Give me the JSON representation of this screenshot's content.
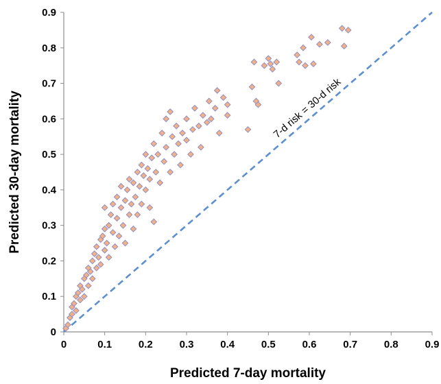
{
  "chart_data": {
    "type": "scatter",
    "title": "",
    "xlabel": "Predicted 7-day mortality",
    "ylabel": "Predicted 30-day mortality",
    "xlim": [
      0,
      0.9
    ],
    "ylim": [
      0,
      0.9
    ],
    "x_ticks": [
      "0",
      "0.1",
      "0.2",
      "0.3",
      "0.4",
      "0.5",
      "0.6",
      "0.7",
      "0.8",
      "0.9"
    ],
    "y_ticks": [
      "0",
      "0.1",
      "0.2",
      "0.3",
      "0.4",
      "0.5",
      "0.6",
      "0.7",
      "0.8",
      "0.9"
    ],
    "grid": false,
    "legend": "none",
    "marker": {
      "shape": "diamond",
      "fill": "#F4B183",
      "edge": "#8E8EC9"
    },
    "reference_line": {
      "label": "7-d risk = 30-d risk",
      "from": [
        0,
        0
      ],
      "to": [
        0.9,
        0.9
      ],
      "style": "dashed",
      "color": "#5B8FCF"
    },
    "points": [
      [
        0.005,
        0.01
      ],
      [
        0.01,
        0.02
      ],
      [
        0.015,
        0.04
      ],
      [
        0.02,
        0.05
      ],
      [
        0.02,
        0.07
      ],
      [
        0.025,
        0.08
      ],
      [
        0.03,
        0.06
      ],
      [
        0.03,
        0.1
      ],
      [
        0.035,
        0.11
      ],
      [
        0.04,
        0.09
      ],
      [
        0.04,
        0.13
      ],
      [
        0.045,
        0.12
      ],
      [
        0.05,
        0.15
      ],
      [
        0.05,
        0.1
      ],
      [
        0.055,
        0.16
      ],
      [
        0.06,
        0.13
      ],
      [
        0.06,
        0.18
      ],
      [
        0.065,
        0.17
      ],
      [
        0.07,
        0.2
      ],
      [
        0.07,
        0.15
      ],
      [
        0.075,
        0.22
      ],
      [
        0.08,
        0.18
      ],
      [
        0.08,
        0.24
      ],
      [
        0.085,
        0.21
      ],
      [
        0.09,
        0.26
      ],
      [
        0.09,
        0.19
      ],
      [
        0.095,
        0.27
      ],
      [
        0.1,
        0.23
      ],
      [
        0.1,
        0.29
      ],
      [
        0.1,
        0.35
      ],
      [
        0.105,
        0.25
      ],
      [
        0.11,
        0.3
      ],
      [
        0.11,
        0.21
      ],
      [
        0.115,
        0.33
      ],
      [
        0.12,
        0.28
      ],
      [
        0.12,
        0.36
      ],
      [
        0.125,
        0.24
      ],
      [
        0.13,
        0.32
      ],
      [
        0.13,
        0.38
      ],
      [
        0.135,
        0.27
      ],
      [
        0.14,
        0.35
      ],
      [
        0.14,
        0.41
      ],
      [
        0.145,
        0.3
      ],
      [
        0.15,
        0.37
      ],
      [
        0.15,
        0.25
      ],
      [
        0.155,
        0.4
      ],
      [
        0.16,
        0.33
      ],
      [
        0.16,
        0.43
      ],
      [
        0.165,
        0.36
      ],
      [
        0.17,
        0.29
      ],
      [
        0.17,
        0.42
      ],
      [
        0.175,
        0.38
      ],
      [
        0.18,
        0.45
      ],
      [
        0.18,
        0.33
      ],
      [
        0.185,
        0.41
      ],
      [
        0.19,
        0.47
      ],
      [
        0.19,
        0.36
      ],
      [
        0.195,
        0.44
      ],
      [
        0.2,
        0.4
      ],
      [
        0.2,
        0.5
      ],
      [
        0.205,
        0.46
      ],
      [
        0.21,
        0.35
      ],
      [
        0.21,
        0.43
      ],
      [
        0.215,
        0.49
      ],
      [
        0.22,
        0.53
      ],
      [
        0.22,
        0.31
      ],
      [
        0.225,
        0.45
      ],
      [
        0.23,
        0.5
      ],
      [
        0.235,
        0.42
      ],
      [
        0.24,
        0.56
      ],
      [
        0.245,
        0.48
      ],
      [
        0.25,
        0.52
      ],
      [
        0.25,
        0.6
      ],
      [
        0.26,
        0.62
      ],
      [
        0.26,
        0.45
      ],
      [
        0.265,
        0.55
      ],
      [
        0.27,
        0.5
      ],
      [
        0.275,
        0.58
      ],
      [
        0.28,
        0.53
      ],
      [
        0.285,
        0.47
      ],
      [
        0.29,
        0.56
      ],
      [
        0.3,
        0.54
      ],
      [
        0.3,
        0.6
      ],
      [
        0.31,
        0.5
      ],
      [
        0.315,
        0.57
      ],
      [
        0.32,
        0.63
      ],
      [
        0.33,
        0.58
      ],
      [
        0.335,
        0.52
      ],
      [
        0.34,
        0.61
      ],
      [
        0.35,
        0.59
      ],
      [
        0.355,
        0.65
      ],
      [
        0.36,
        0.6
      ],
      [
        0.37,
        0.63
      ],
      [
        0.375,
        0.68
      ],
      [
        0.38,
        0.56
      ],
      [
        0.39,
        0.66
      ],
      [
        0.4,
        0.64
      ],
      [
        0.4,
        0.61
      ],
      [
        0.45,
        0.57
      ],
      [
        0.46,
        0.69
      ],
      [
        0.465,
        0.76
      ],
      [
        0.47,
        0.65
      ],
      [
        0.475,
        0.64
      ],
      [
        0.49,
        0.75
      ],
      [
        0.5,
        0.77
      ],
      [
        0.505,
        0.755
      ],
      [
        0.51,
        0.74
      ],
      [
        0.52,
        0.76
      ],
      [
        0.525,
        0.7
      ],
      [
        0.57,
        0.78
      ],
      [
        0.575,
        0.76
      ],
      [
        0.585,
        0.8
      ],
      [
        0.59,
        0.75
      ],
      [
        0.605,
        0.83
      ],
      [
        0.61,
        0.755
      ],
      [
        0.625,
        0.81
      ],
      [
        0.645,
        0.815
      ],
      [
        0.68,
        0.855
      ],
      [
        0.685,
        0.805
      ],
      [
        0.695,
        0.85
      ]
    ]
  }
}
